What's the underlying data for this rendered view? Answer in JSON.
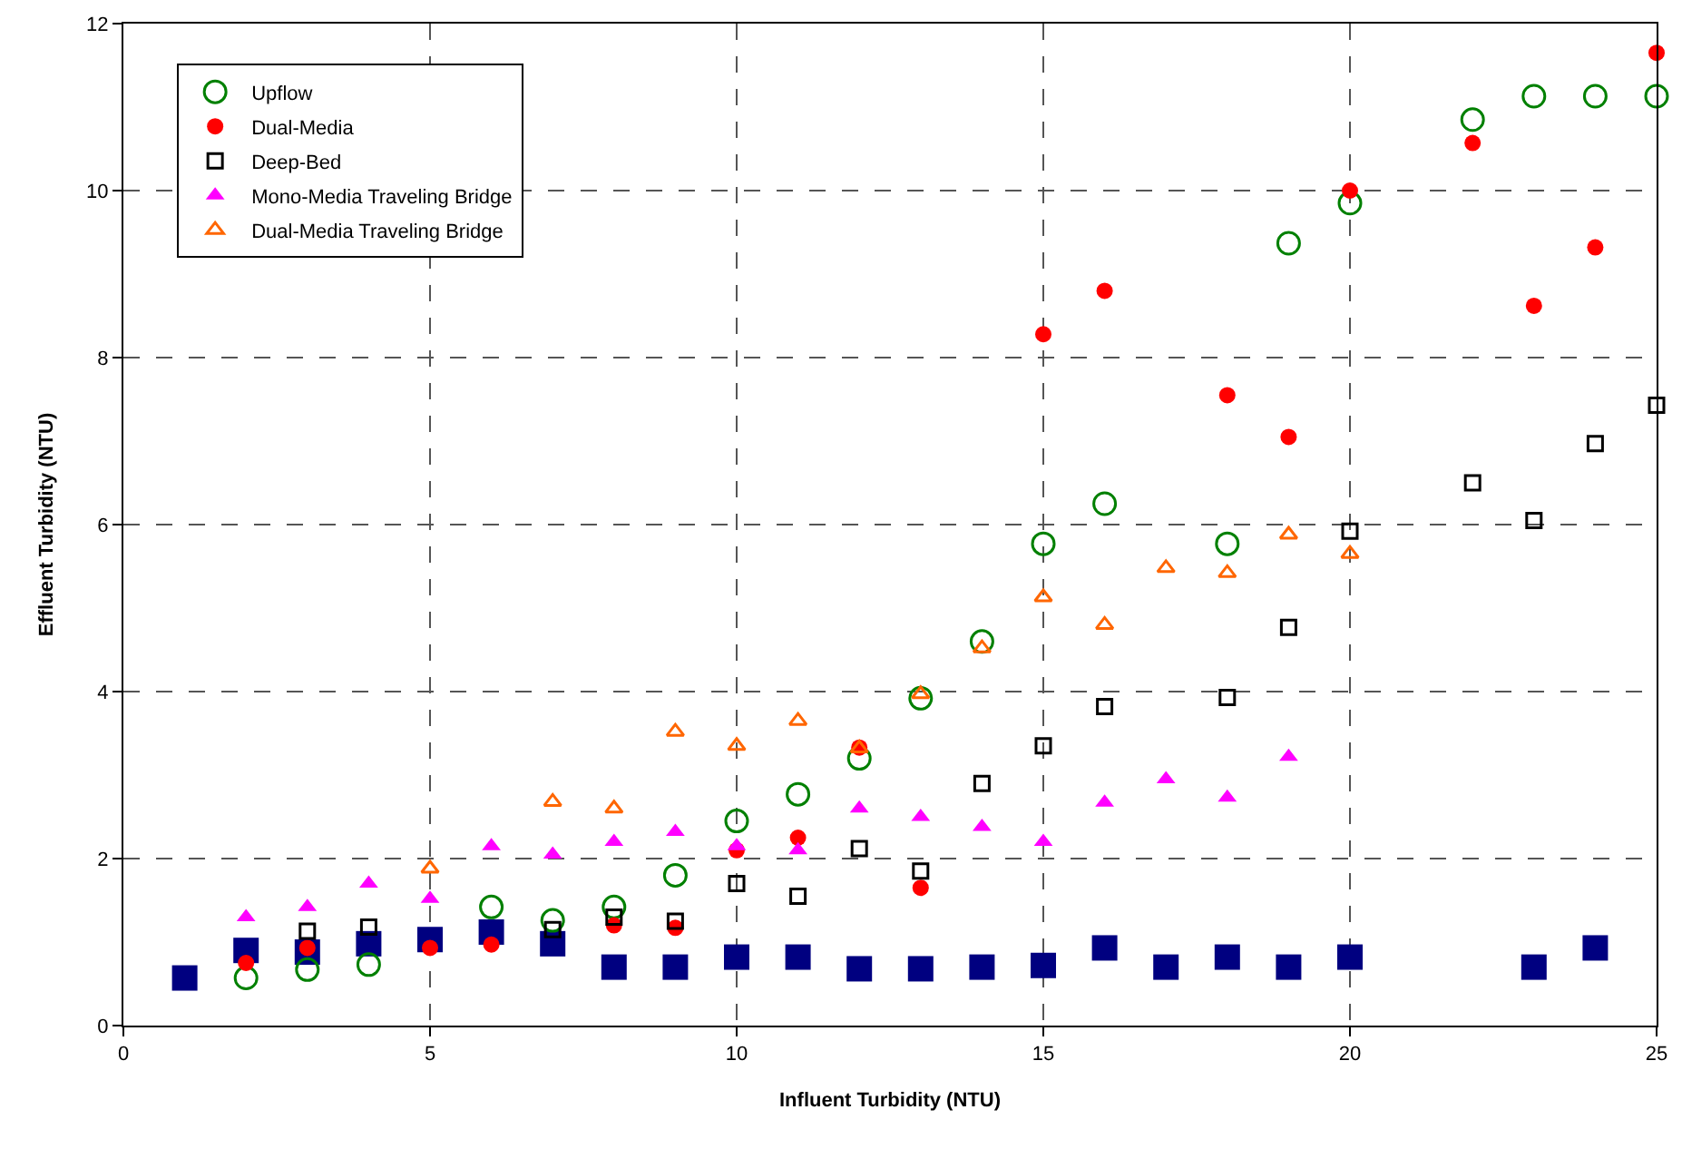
{
  "chart_data": {
    "type": "scatter",
    "xlabel": "Influent Turbidity (NTU)",
    "ylabel": "Effluent Turbidity (NTU)",
    "xlim": [
      0,
      25
    ],
    "xticks": [
      0,
      5,
      10,
      15,
      20,
      25
    ],
    "ylim": [
      0,
      12
    ],
    "yticks": [
      0,
      2,
      4,
      6,
      8,
      10,
      12
    ],
    "grid": true,
    "legend": "top left",
    "series": [
      {
        "color": "#000080",
        "marker": "square",
        "x": [
          1,
          2,
          3,
          4,
          5,
          6,
          7,
          8,
          9,
          10,
          11,
          12,
          13,
          14,
          15,
          16,
          17,
          18,
          19,
          20,
          23,
          24
        ],
        "values": [
          0.57,
          0.9,
          0.88,
          0.98,
          1.03,
          1.12,
          0.98,
          0.7,
          0.7,
          0.82,
          0.82,
          0.68,
          0.68,
          0.7,
          0.72,
          0.93,
          0.7,
          0.82,
          0.7,
          0.82,
          0.7,
          0.93
        ]
      },
      {
        "name": "Upflow",
        "color": "#008000",
        "marker": "circle-open",
        "x": [
          2,
          3,
          4,
          6,
          7,
          8,
          9,
          10,
          11,
          12,
          13,
          14,
          15,
          16,
          18,
          19,
          20,
          22,
          23,
          24,
          25
        ],
        "values": [
          0.57,
          0.67,
          0.73,
          1.42,
          1.26,
          1.42,
          1.8,
          2.45,
          2.77,
          3.2,
          3.92,
          4.6,
          5.77,
          6.25,
          5.77,
          9.37,
          9.85,
          10.85,
          11.13,
          11.13,
          11.13
        ]
      },
      {
        "name": "Dual-Media",
        "color": "#ff0000",
        "marker": "circle",
        "x": [
          2,
          3,
          5,
          6,
          8,
          9,
          10,
          11,
          12,
          13,
          15,
          16,
          18,
          19,
          20,
          22,
          23,
          24,
          25
        ],
        "values": [
          0.75,
          0.93,
          0.93,
          0.97,
          1.2,
          1.17,
          2.1,
          2.25,
          3.33,
          1.65,
          8.28,
          8.8,
          7.55,
          7.05,
          10.0,
          10.57,
          8.62,
          9.32,
          11.65
        ]
      },
      {
        "name": "Deep-Bed",
        "color": "#000000",
        "marker": "square-open",
        "x": [
          3,
          4,
          7,
          8,
          9,
          10,
          11,
          12,
          13,
          14,
          15,
          16,
          18,
          19,
          20,
          22,
          23,
          24,
          25
        ],
        "values": [
          1.13,
          1.18,
          1.15,
          1.3,
          1.25,
          1.7,
          1.55,
          2.12,
          1.85,
          2.9,
          3.35,
          3.82,
          3.93,
          4.77,
          5.92,
          6.5,
          6.05,
          6.97,
          7.43
        ]
      },
      {
        "name": "Mono-Media Traveling Bridge",
        "color": "#ff00ff",
        "marker": "triangle",
        "x": [
          2,
          3,
          4,
          5,
          6,
          7,
          8,
          9,
          10,
          11,
          12,
          13,
          14,
          15,
          16,
          17,
          18,
          19
        ],
        "values": [
          1.3,
          1.42,
          1.7,
          1.52,
          2.15,
          2.05,
          2.2,
          2.32,
          2.15,
          2.1,
          2.6,
          2.5,
          2.38,
          2.2,
          2.67,
          2.95,
          2.73,
          3.22
        ]
      },
      {
        "name": "Dual-Media Traveling Bridge",
        "color": "#ff6600",
        "marker": "triangle-open",
        "x": [
          5,
          7,
          8,
          9,
          10,
          11,
          12,
          13,
          14,
          15,
          16,
          17,
          18,
          19,
          20
        ],
        "values": [
          1.88,
          2.68,
          2.6,
          3.52,
          3.35,
          3.65,
          3.32,
          3.97,
          4.52,
          5.13,
          4.8,
          5.48,
          5.42,
          5.88,
          5.65
        ]
      }
    ]
  }
}
